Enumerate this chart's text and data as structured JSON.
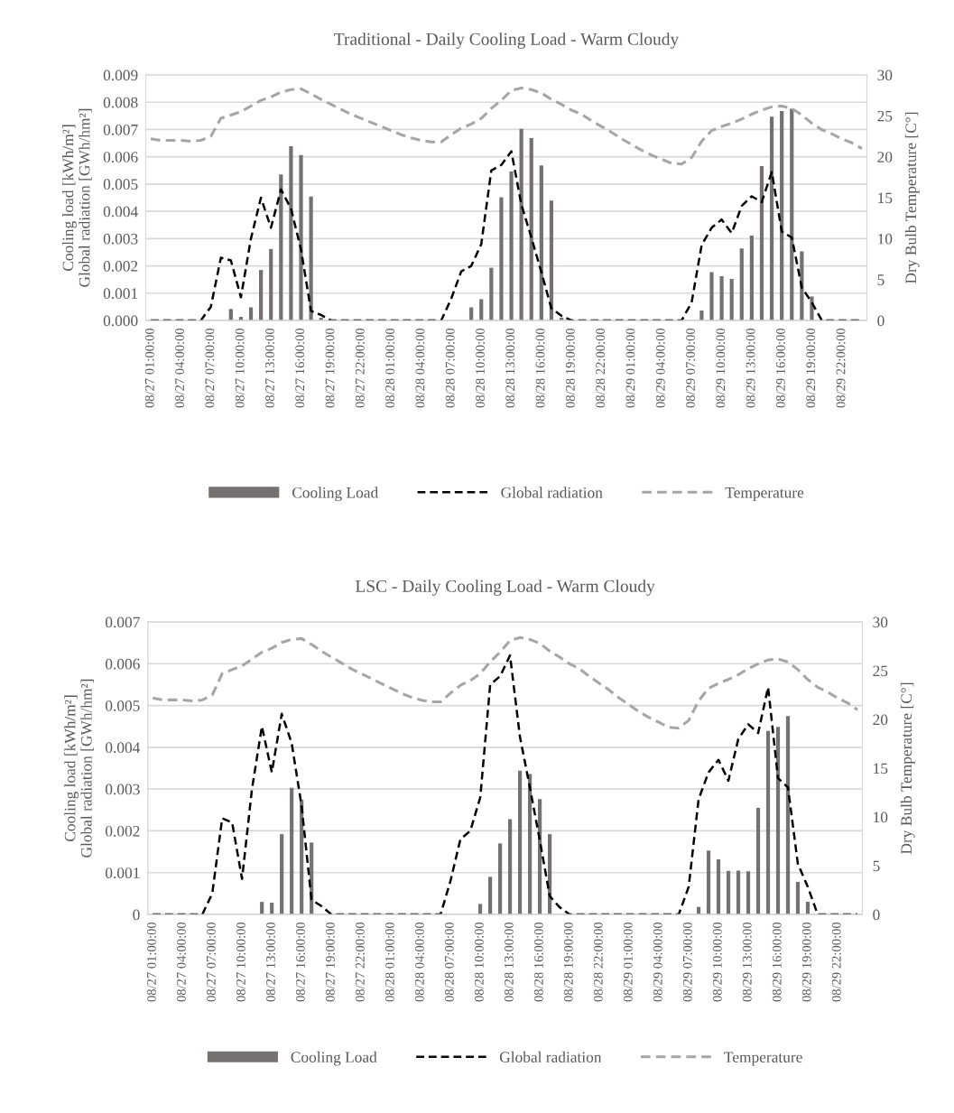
{
  "chart_data": [
    {
      "type": "bar",
      "title": "Traditional - Daily Cooling Load - Warm Cloudy",
      "ylabel": "Cooling load [kWh/m²]\nGlobal radiation [GWh/hm²]",
      "y2label": "Dry Bulb Temperature [C°]",
      "categories": [
        "08/27 01:00:00",
        null,
        null,
        "08/27 04:00:00",
        null,
        null,
        "08/27 07:00:00",
        null,
        null,
        "08/27 10:00:00",
        null,
        null,
        "08/27 13:00:00",
        null,
        null,
        "08/27 16:00:00",
        null,
        null,
        "08/27 19:00:00",
        null,
        null,
        "08/27 22:00:00",
        null,
        null,
        "08/28 01:00:00",
        null,
        null,
        "08/28 04:00:00",
        null,
        null,
        "08/28 07:00:00",
        null,
        null,
        "08/28 10:00:00",
        null,
        null,
        "08/28 13:00:00",
        null,
        null,
        "08/28 16:00:00",
        null,
        null,
        "08/28 19:00:00",
        null,
        null,
        "08/28 22:00:00",
        null,
        null,
        "08/29 01:00:00",
        null,
        null,
        "08/29 04:00:00",
        null,
        null,
        "08/29 07:00:00",
        null,
        null,
        "08/29 10:00:00",
        null,
        null,
        "08/29 13:00:00",
        null,
        null,
        "08/29 16:00:00",
        null,
        null,
        "08/29 19:00:00",
        null,
        null,
        "08/29 22:00:00",
        null,
        null
      ],
      "series": [
        {
          "name": "Cooling Load",
          "color": "#767171",
          "values": [
            null,
            null,
            null,
            null,
            null,
            null,
            null,
            null,
            0.00042,
            0.00013,
            0.00048,
            0.00185,
            0.00262,
            0.00535,
            0.00639,
            0.00606,
            0.00454,
            0.0001,
            null,
            null,
            null,
            null,
            null,
            null,
            null,
            null,
            null,
            null,
            null,
            null,
            null,
            null,
            0.00048,
            0.00078,
            0.00193,
            0.00452,
            0.00546,
            0.00702,
            0.00668,
            0.00568,
            0.00439,
            0.0001,
            null,
            null,
            null,
            null,
            null,
            null,
            null,
            null,
            null,
            null,
            null,
            null,
            null,
            0.00036,
            0.00177,
            0.00162,
            0.00152,
            0.00264,
            0.00311,
            0.00566,
            0.00747,
            0.00768,
            0.00776,
            0.00253,
            0.00088,
            null,
            null,
            null,
            null,
            null
          ]
        },
        {
          "name": "Global radiation",
          "type": "line",
          "color": "#000000",
          "line_style": "dashed",
          "values": [
            0,
            0,
            0,
            0,
            0,
            0,
            0.0005,
            0.0023,
            0.0022,
            0.00085,
            0.003,
            0.0045,
            0.0034,
            0.0048,
            0.0041,
            0.0026,
            0.00035,
            0.0002,
            0,
            0,
            0,
            0,
            0,
            0,
            0,
            0,
            0,
            0,
            0,
            0,
            0.0008,
            0.0018,
            0.002,
            0.0028,
            0.0055,
            0.0057,
            0.0062,
            0.00425,
            0.00304,
            0.00177,
            0.00044,
            0.00017,
            0,
            0,
            0,
            0,
            0,
            0,
            0,
            0,
            0,
            0,
            0,
            0,
            0.00066,
            0.00276,
            0.0034,
            0.0037,
            0.0032,
            0.0042,
            0.00455,
            0.00434,
            0.00544,
            0.00326,
            0.00304,
            0.00121,
            0.00066,
            0,
            0,
            0,
            0,
            0
          ]
        },
        {
          "name": "Temperature",
          "type": "line",
          "axis": "y2",
          "color": "#a6a6a6",
          "line_style": "dashed",
          "values": [
            22.2,
            22.0,
            22.0,
            22.0,
            21.9,
            22.0,
            22.5,
            24.7,
            25.1,
            25.5,
            26.2,
            26.9,
            27.3,
            27.9,
            28.2,
            28.3,
            27.7,
            27.0,
            26.4,
            25.8,
            25.2,
            24.7,
            24.2,
            23.7,
            23.2,
            22.7,
            22.3,
            22.0,
            21.8,
            21.8,
            22.7,
            23.5,
            24.0,
            24.7,
            25.9,
            26.9,
            28.1,
            28.4,
            28.2,
            27.8,
            27.0,
            26.4,
            25.7,
            25.2,
            24.4,
            23.7,
            23.0,
            22.2,
            21.5,
            20.8,
            20.2,
            19.7,
            19.2,
            19.1,
            19.9,
            21.9,
            23.2,
            23.7,
            24.1,
            24.6,
            25.2,
            25.7,
            26.1,
            26.2,
            25.9,
            25.1,
            24.1,
            23.3,
            22.8,
            22.2,
            21.7,
            21.0
          ]
        }
      ],
      "ylim": [
        0,
        0.009
      ],
      "yticks": [
        {
          "value": 0,
          "label": "0.000"
        },
        0.001,
        0.002,
        0.003,
        0.004,
        0.005,
        0.006,
        0.007,
        0.008,
        0.009
      ],
      "y2lim": [
        0,
        30
      ],
      "y2ticks": [
        0,
        5,
        10,
        15,
        20,
        25,
        30
      ],
      "grid": "y",
      "legend": "bottom"
    },
    {
      "type": "bar",
      "title": "LSC - Daily Cooling Load - Warm Cloudy",
      "ylabel": "Cooling load [kWh/m²]\nGlobal radiation [GWh/hm²]",
      "y2label": "Dry Bulb Temperature [C°]",
      "categories": [
        "08/27 01:00:00",
        null,
        null,
        "08/27 04:00:00",
        null,
        null,
        "08/27 07:00:00",
        null,
        null,
        "08/27 10:00:00",
        null,
        null,
        "08/27 13:00:00",
        null,
        null,
        "08/27 16:00:00",
        null,
        null,
        "08/27 19:00:00",
        null,
        null,
        "08/27 22:00:00",
        null,
        null,
        "08/28 01:00:00",
        null,
        null,
        "08/28 04:00:00",
        null,
        null,
        "08/28 07:00:00",
        null,
        null,
        "08/28 10:00:00",
        null,
        null,
        "08/28 13:00:00",
        null,
        null,
        "08/28 16:00:00",
        null,
        null,
        "08/28 19:00:00",
        null,
        null,
        "08/28 22:00:00",
        null,
        null,
        "08/29 01:00:00",
        null,
        null,
        "08/29 04:00:00",
        null,
        null,
        "08/29 07:00:00",
        null,
        null,
        "08/29 10:00:00",
        null,
        null,
        "08/29 13:00:00",
        null,
        null,
        "08/29 16:00:00",
        null,
        null,
        "08/29 19:00:00",
        null,
        null,
        "08/29 22:00:00",
        null,
        null
      ],
      "series": [
        {
          "name": "Cooling Load",
          "color": "#767171",
          "values": [
            null,
            null,
            null,
            null,
            null,
            null,
            null,
            null,
            null,
            null,
            null,
            0.0003,
            0.00028,
            0.00192,
            0.00303,
            0.00274,
            0.00172,
            null,
            null,
            null,
            null,
            null,
            null,
            null,
            null,
            null,
            null,
            null,
            null,
            null,
            null,
            null,
            null,
            0.00025,
            0.0009,
            0.0017,
            0.00228,
            0.00344,
            0.00336,
            0.00276,
            0.00192,
            null,
            null,
            null,
            null,
            null,
            null,
            null,
            null,
            null,
            null,
            null,
            null,
            null,
            null,
            0.00018,
            0.00153,
            0.00132,
            0.00104,
            0.00105,
            0.00103,
            0.00255,
            0.00439,
            0.00449,
            0.00475,
            0.00078,
            0.0003,
            null,
            null,
            null,
            null,
            null
          ]
        },
        {
          "name": "Global radiation",
          "type": "line",
          "color": "#000000",
          "line_style": "dashed",
          "values": [
            0,
            0,
            0,
            0,
            0,
            0,
            0.0005,
            0.0023,
            0.0022,
            0.00085,
            0.003,
            0.0045,
            0.0034,
            0.0048,
            0.0041,
            0.0026,
            0.00035,
            0.0002,
            0,
            0,
            0,
            0,
            0,
            0,
            0,
            0,
            0,
            0,
            0,
            0,
            0.0008,
            0.0018,
            0.002,
            0.0028,
            0.0055,
            0.0057,
            0.0062,
            0.00425,
            0.00304,
            0.00177,
            0.00044,
            0.00017,
            0,
            0,
            0,
            0,
            0,
            0,
            0,
            0,
            0,
            0,
            0,
            0,
            0.00066,
            0.00276,
            0.0034,
            0.0037,
            0.0032,
            0.0042,
            0.00455,
            0.00434,
            0.00544,
            0.00326,
            0.00304,
            0.00121,
            0.00066,
            0,
            0,
            0,
            0,
            0
          ]
        },
        {
          "name": "Temperature",
          "type": "line",
          "axis": "y2",
          "color": "#a6a6a6",
          "line_style": "dashed",
          "values": [
            22.2,
            22.0,
            22.0,
            22.0,
            21.9,
            22.0,
            22.5,
            24.7,
            25.1,
            25.5,
            26.2,
            26.9,
            27.3,
            27.9,
            28.2,
            28.3,
            27.7,
            27.0,
            26.4,
            25.8,
            25.2,
            24.7,
            24.2,
            23.7,
            23.2,
            22.7,
            22.3,
            22.0,
            21.8,
            21.8,
            22.7,
            23.5,
            24.0,
            24.7,
            25.9,
            26.9,
            28.1,
            28.4,
            28.2,
            27.8,
            27.0,
            26.4,
            25.7,
            25.2,
            24.4,
            23.7,
            23.0,
            22.2,
            21.5,
            20.8,
            20.2,
            19.7,
            19.2,
            19.1,
            19.9,
            21.9,
            23.2,
            23.7,
            24.1,
            24.6,
            25.2,
            25.7,
            26.1,
            26.2,
            25.9,
            25.1,
            24.1,
            23.3,
            22.8,
            22.2,
            21.7,
            21.0
          ]
        }
      ],
      "ylim": [
        0,
        0.007
      ],
      "yticks": [
        0,
        0.001,
        0.002,
        0.003,
        0.004,
        0.005,
        0.006,
        0.007
      ],
      "y2lim": [
        0,
        30
      ],
      "y2ticks": [
        0,
        5,
        10,
        15,
        20,
        25,
        30
      ],
      "grid": "y",
      "legend": "bottom"
    }
  ]
}
